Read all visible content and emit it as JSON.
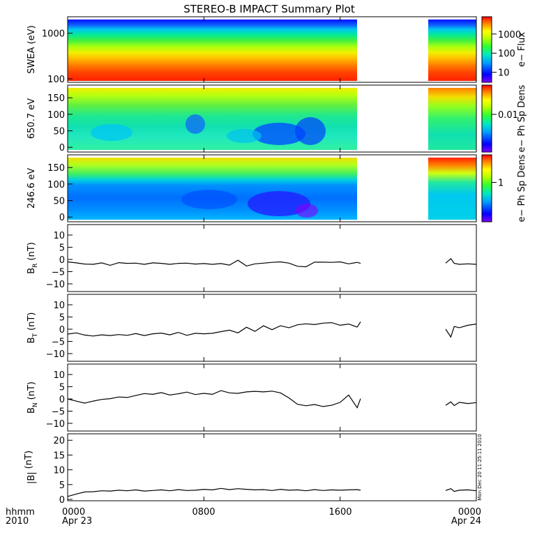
{
  "title": "STEREO-B IMPACT Summary Plot",
  "time_axis": {
    "row1_tick_labels": [
      "0000",
      "0800",
      "1600",
      "0000"
    ],
    "row2_tick_labels": [
      "Apr 23",
      "",
      "",
      "Apr 24"
    ],
    "tick_hours": [
      0,
      8,
      16,
      24
    ],
    "axis_title_line1": "hhmm",
    "axis_title_line2": "2010",
    "data_gap_hours": [
      17.5,
      22.3
    ]
  },
  "stamp": "Mon Dec 20 11:25:11 2010",
  "chart_data": [
    {
      "type": "heatmap",
      "panel": "swea",
      "ylabel": "SWEA (eV)",
      "yscale": "log",
      "ylim": [
        90,
        2000
      ],
      "ytick_labels": [
        "1000",
        "100"
      ],
      "ytick_values": [
        1000,
        100
      ],
      "colorbar_label": "e− Flux",
      "colorbar_scale": "log",
      "colorbar_range": [
        3,
        8000
      ],
      "colorbar_tick_labels": [
        "1000",
        "100",
        "10"
      ],
      "colorbar_tick_values": [
        1000,
        100,
        10
      ]
    },
    {
      "type": "heatmap",
      "panel": "pad650",
      "ylabel": "650.7 eV",
      "ylim": [
        -8,
        180
      ],
      "ytick_labels": [
        "150",
        "100",
        "50",
        "0"
      ],
      "ytick_values": [
        150,
        100,
        50,
        0
      ],
      "colorbar_label": "e− Ph Sp Dens",
      "colorbar_scale": "log",
      "colorbar_range": [
        0.001,
        0.06
      ],
      "colorbar_tick_labels": [
        "0.01"
      ],
      "colorbar_tick_values": [
        0.01
      ]
    },
    {
      "type": "heatmap",
      "panel": "pad246",
      "ylabel": "246.6 eV",
      "ylim": [
        -8,
        180
      ],
      "ytick_labels": [
        "150",
        "100",
        "50",
        "0"
      ],
      "ytick_values": [
        150,
        100,
        50,
        0
      ],
      "colorbar_label": "e− Ph Sp Dens",
      "colorbar_scale": "log",
      "colorbar_range": [
        0.1,
        5
      ],
      "colorbar_tick_labels": [
        "1"
      ],
      "colorbar_tick_values": [
        1
      ]
    },
    {
      "type": "line",
      "panel": "br",
      "ylabel_main": "B",
      "ylabel_sub": "R",
      "ylabel_unit": "(nT)",
      "ylim": [
        -12,
        12
      ],
      "ytick_labels": [
        "10",
        "5",
        "0",
        "−5",
        "−10"
      ],
      "ytick_values": [
        10,
        5,
        0,
        -5,
        -10
      ],
      "segments": [
        {
          "x": [
            0,
            0.5,
            1,
            1.5,
            2,
            2.5,
            3,
            3.5,
            4,
            4.5,
            5,
            5.5,
            6,
            6.5,
            7,
            7.5,
            8,
            8.5,
            9,
            9.5,
            10,
            10.5,
            11,
            11.5,
            12,
            12.5,
            13,
            13.5,
            14,
            14.5,
            15,
            15.5,
            16,
            16.5,
            17,
            17.2
          ],
          "y": [
            -1.0,
            -1.4,
            -1.9,
            -2.0,
            -1.4,
            -2.4,
            -1.3,
            -1.6,
            -1.5,
            -2.0,
            -1.4,
            -1.6,
            -2.0,
            -1.6,
            -1.5,
            -1.9,
            -1.7,
            -2.0,
            -1.7,
            -2.3,
            -0.3,
            -2.7,
            -1.8,
            -1.5,
            -1.2,
            -1.0,
            -1.5,
            -2.8,
            -3.0,
            -1.1,
            -1.1,
            -1.2,
            -1.0,
            -1.8,
            -1.2,
            -1.6
          ]
        },
        {
          "x": [
            22.2,
            22.5,
            22.7,
            23.0,
            23.5,
            24.0
          ],
          "y": [
            -1.5,
            0.3,
            -1.6,
            -2.0,
            -1.8,
            -2.0
          ]
        }
      ]
    },
    {
      "type": "line",
      "panel": "bt",
      "ylabel_main": "B",
      "ylabel_sub": "T",
      "ylabel_unit": "(nT)",
      "ylim": [
        -12,
        12
      ],
      "ytick_labels": [
        "10",
        "5",
        "0",
        "−5",
        "−10"
      ],
      "ytick_values": [
        10,
        5,
        0,
        -5,
        -10
      ],
      "segments": [
        {
          "x": [
            0,
            0.5,
            1,
            1.5,
            2,
            2.5,
            3,
            3.5,
            4,
            4.5,
            5,
            5.5,
            6,
            6.5,
            7,
            7.5,
            8,
            8.5,
            9,
            9.5,
            10,
            10.5,
            11,
            11.5,
            12,
            12.5,
            13,
            13.5,
            14,
            14.5,
            15,
            15.5,
            16,
            16.5,
            17,
            17.2
          ],
          "y": [
            -2.0,
            -1.5,
            -2.4,
            -2.8,
            -2.3,
            -2.6,
            -2.2,
            -2.5,
            -1.8,
            -2.6,
            -1.9,
            -1.6,
            -2.3,
            -1.3,
            -2.5,
            -1.7,
            -1.9,
            -1.7,
            -1.0,
            -0.4,
            -1.5,
            0.8,
            -0.9,
            1.4,
            -0.2,
            1.4,
            0.6,
            1.8,
            2.2,
            1.9,
            2.5,
            2.7,
            1.6,
            2.1,
            0.9,
            3.0
          ]
        },
        {
          "x": [
            22.2,
            22.5,
            22.7,
            23.0,
            23.5,
            24.0
          ],
          "y": [
            0.0,
            -3.2,
            1.1,
            0.6,
            1.6,
            2.1
          ]
        }
      ]
    },
    {
      "type": "line",
      "panel": "bn",
      "ylabel_main": "B",
      "ylabel_sub": "N",
      "ylabel_unit": "(nT)",
      "ylim": [
        -12,
        12
      ],
      "ytick_labels": [
        "10",
        "5",
        "0",
        "−5",
        "−10"
      ],
      "ytick_values": [
        10,
        5,
        0,
        -5,
        -10
      ],
      "segments": [
        {
          "x": [
            0,
            0.5,
            1,
            1.5,
            2,
            2.5,
            3,
            3.5,
            4,
            4.5,
            5,
            5.5,
            6,
            6.5,
            7,
            7.5,
            8,
            8.5,
            9,
            9.5,
            10,
            10.5,
            11,
            11.5,
            12,
            12.5,
            13,
            13.5,
            14,
            14.5,
            15,
            15.5,
            16,
            16.5,
            17,
            17.2
          ],
          "y": [
            0.0,
            -0.9,
            -1.7,
            -0.9,
            -0.2,
            0.1,
            0.8,
            0.6,
            1.4,
            2.2,
            1.9,
            2.6,
            1.6,
            2.1,
            2.8,
            1.8,
            2.3,
            1.9,
            3.4,
            2.5,
            2.3,
            2.9,
            3.1,
            2.9,
            3.2,
            2.5,
            0.4,
            -2.2,
            -2.8,
            -2.3,
            -3.1,
            -2.6,
            -1.4,
            1.6,
            -3.6,
            0.1
          ]
        },
        {
          "x": [
            22.2,
            22.5,
            22.7,
            23.0,
            23.5,
            24.0
          ],
          "y": [
            -2.6,
            -1.2,
            -2.7,
            -1.4,
            -1.9,
            -1.5
          ]
        }
      ]
    },
    {
      "type": "line",
      "panel": "btot",
      "ylabel_main": "|B|",
      "ylabel_sub": "",
      "ylabel_unit": "(nT)",
      "ylim": [
        0,
        21
      ],
      "ytick_labels": [
        "20",
        "15",
        "10",
        "5",
        "0"
      ],
      "ytick_values": [
        20,
        15,
        10,
        5,
        0
      ],
      "segments": [
        {
          "x": [
            0,
            0.5,
            1,
            1.5,
            2,
            2.5,
            3,
            3.5,
            4,
            4.5,
            5,
            5.5,
            6,
            6.5,
            7,
            7.5,
            8,
            8.5,
            9,
            9.5,
            10,
            10.5,
            11,
            11.5,
            12,
            12.5,
            13,
            13.5,
            14,
            14.5,
            15,
            15.5,
            16,
            16.5,
            17,
            17.2
          ],
          "y": [
            1.0,
            1.8,
            2.5,
            2.6,
            2.9,
            2.8,
            3.1,
            2.9,
            3.2,
            2.8,
            3.0,
            3.2,
            2.9,
            3.3,
            3.0,
            3.1,
            3.4,
            3.2,
            3.7,
            3.3,
            3.6,
            3.4,
            3.2,
            3.3,
            3.0,
            3.4,
            3.1,
            3.2,
            2.9,
            3.3,
            3.0,
            3.2,
            3.1,
            3.2,
            3.3,
            3.1
          ]
        },
        {
          "x": [
            22.2,
            22.5,
            22.7,
            23.0,
            23.5,
            24.0
          ],
          "y": [
            3.0,
            3.6,
            2.7,
            3.1,
            3.2,
            2.9
          ]
        }
      ]
    }
  ]
}
